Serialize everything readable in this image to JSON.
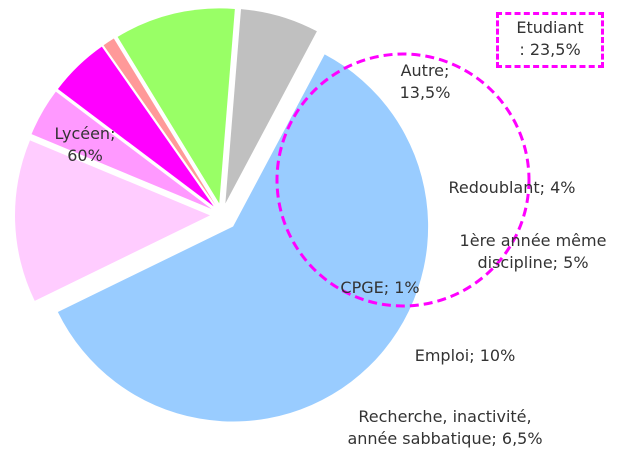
{
  "chart_data": {
    "type": "pie",
    "labels": [
      "Lycéen;\n60%",
      "Autre;\n13,5%",
      "Redoublant; 4%",
      "1ère année même\ndiscipline; 5%",
      "CPGE; 1%",
      "Emploi; 10%",
      "Recherche, inactivité,\nannée sabbatique; 6,5%"
    ],
    "values": [
      60,
      13.5,
      4,
      5,
      1,
      10,
      6.5
    ],
    "colors": [
      "#99ccff",
      "#ffccff",
      "#ff99ff",
      "#ff00ff",
      "#ff9999",
      "#99ff66",
      "#c0c0c0"
    ],
    "annotation": "Etudiant\n: 23,5%",
    "annotation_color": "#ff00ff"
  }
}
